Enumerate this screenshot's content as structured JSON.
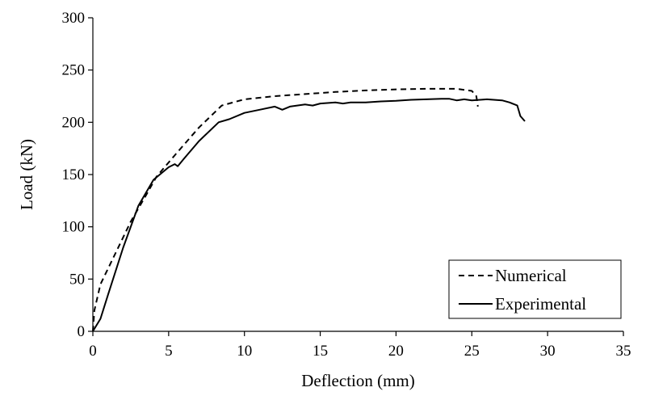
{
  "chart_data": {
    "type": "line",
    "title": "",
    "xlabel": "Deflection (mm)",
    "ylabel": "Load (kN)",
    "xlim": [
      0,
      35
    ],
    "ylim": [
      0,
      300
    ],
    "xticks": [
      0,
      5,
      10,
      15,
      20,
      25,
      30,
      35
    ],
    "yticks": [
      0,
      50,
      100,
      150,
      200,
      250,
      300
    ],
    "grid": false,
    "legend_position": "bottom-right",
    "series": [
      {
        "name": "Numerical",
        "style": "dashed",
        "color": "#000000",
        "x": [
          0,
          0.1,
          0.5,
          1.5,
          2.5,
          3.5,
          4.2,
          5.5,
          7,
          8.5,
          10,
          12,
          14,
          16,
          18,
          20,
          22,
          24,
          25,
          25.3,
          25.4
        ],
        "y": [
          0,
          20,
          45,
          75,
          105,
          130,
          148,
          170,
          195,
          216,
          222,
          225,
          227,
          229,
          230.5,
          231.5,
          232,
          232,
          230,
          225,
          215
        ]
      },
      {
        "name": "Experimental",
        "style": "solid",
        "color": "#000000",
        "x": [
          0,
          0.5,
          1,
          2,
          3,
          4,
          5,
          5.4,
          5.6,
          6,
          7,
          8.3,
          9,
          10,
          11,
          12,
          12.5,
          13,
          14,
          14.5,
          15,
          16,
          16.5,
          17,
          18,
          19,
          20,
          21,
          22,
          23,
          23.5,
          24,
          24.5,
          25,
          26,
          27,
          27.5,
          28,
          28.2,
          28.5
        ],
        "y": [
          0,
          12,
          35,
          80,
          120,
          145,
          157,
          160,
          158,
          165,
          182,
          200,
          203,
          209,
          212,
          215,
          212,
          215,
          217,
          216,
          218,
          219,
          218,
          219,
          219,
          220,
          220.5,
          221.5,
          222,
          222.5,
          222.5,
          221,
          222,
          221,
          222,
          221,
          219,
          216,
          206,
          201
        ]
      }
    ]
  }
}
